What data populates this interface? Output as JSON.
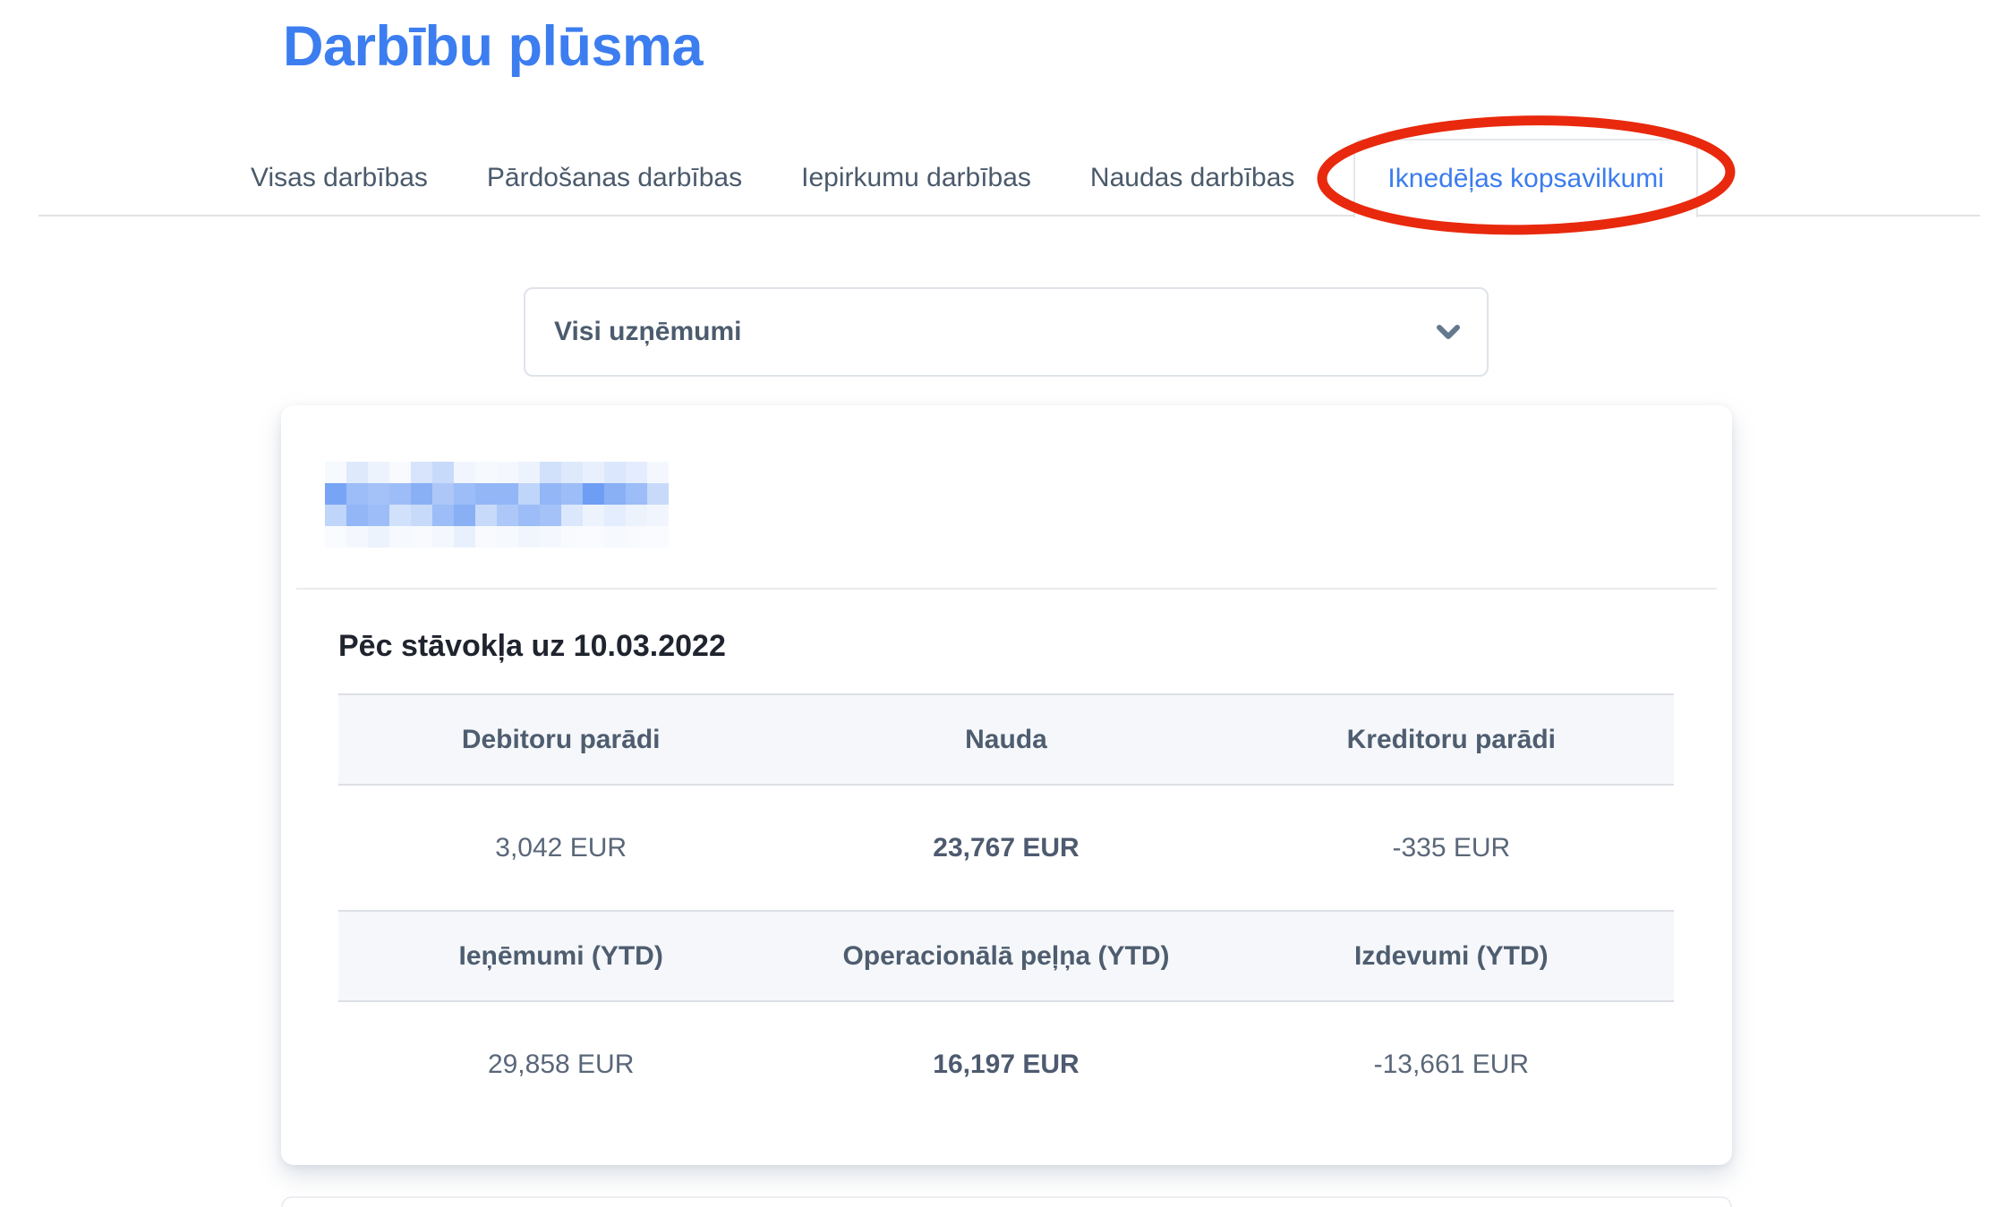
{
  "page": {
    "title": "Darbību plūsma"
  },
  "tabs": {
    "items": [
      {
        "id": "visas-darbibas",
        "label": "Visas darbības",
        "active": false
      },
      {
        "id": "pardosanas-darbibas",
        "label": "Pārdošanas darbības",
        "active": false
      },
      {
        "id": "iepirkumu-darbibas",
        "label": "Iepirkumu darbības",
        "active": false
      },
      {
        "id": "naudas-darbibas",
        "label": "Naudas darbības",
        "active": false
      },
      {
        "id": "iknedelas-kopsavilkumi",
        "label": "Iknedēļas kopsavilkumi",
        "active": true
      }
    ]
  },
  "annotation": {
    "type": "red-ellipse",
    "color": "#e8290d",
    "target_tab": "Iknedēļas kopsavilkumi"
  },
  "company_filter": {
    "value": "Visi uzņēmumi",
    "icon": "chevron-down-icon"
  },
  "card": {
    "company_name_redacted": true,
    "as_of_label": "Pēc stāvokļa uz 10.03.2022",
    "summary_rows": [
      {
        "cells": [
          {
            "header": "Debitoru parādi",
            "value": "3,042 EUR",
            "bold": false
          },
          {
            "header": "Nauda",
            "value": "23,767 EUR",
            "bold": true
          },
          {
            "header": "Kreditoru parādi",
            "value": "-335 EUR",
            "bold": false
          }
        ]
      },
      {
        "cells": [
          {
            "header": "Ieņēmumi (YTD)",
            "value": "29,858 EUR",
            "bold": false
          },
          {
            "header": "Operacionālā peļņa (YTD)",
            "value": "16,197 EUR",
            "bold": true
          },
          {
            "header": "Izdevumi (YTD)",
            "value": "-13,661 EUR",
            "bold": false
          }
        ]
      }
    ]
  },
  "colors": {
    "accent_blue": "#3c7df0",
    "annotation_red": "#e8290d",
    "tab_text": "#4a5a6b",
    "table_band_bg": "#f5f7fa",
    "value_text": "#5a6779"
  }
}
